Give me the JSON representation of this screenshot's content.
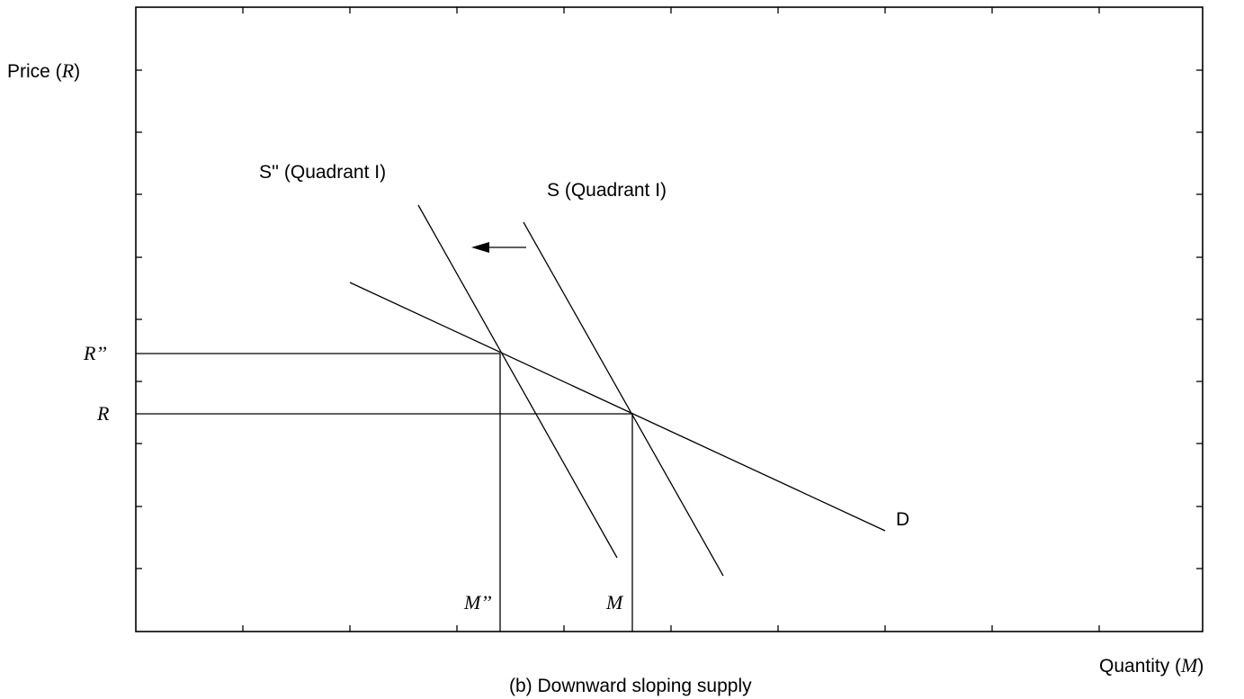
{
  "y_axis_label": {
    "prefix": "Price (",
    "symbol": "R",
    "suffix": ")"
  },
  "x_axis_label": {
    "prefix": "Quantity (",
    "symbol": "M",
    "suffix": ")"
  },
  "caption": "(b) Downward sloping supply",
  "curves": {
    "supply_original": "S (Quadrant I)",
    "supply_shifted": "S'' (Quadrant I)",
    "demand": "D"
  },
  "equilibrium_labels": {
    "price_original": "R",
    "price_new": "R’’",
    "quantity_original": "M",
    "quantity_new": "M’’"
  },
  "shift_direction": "left"
}
